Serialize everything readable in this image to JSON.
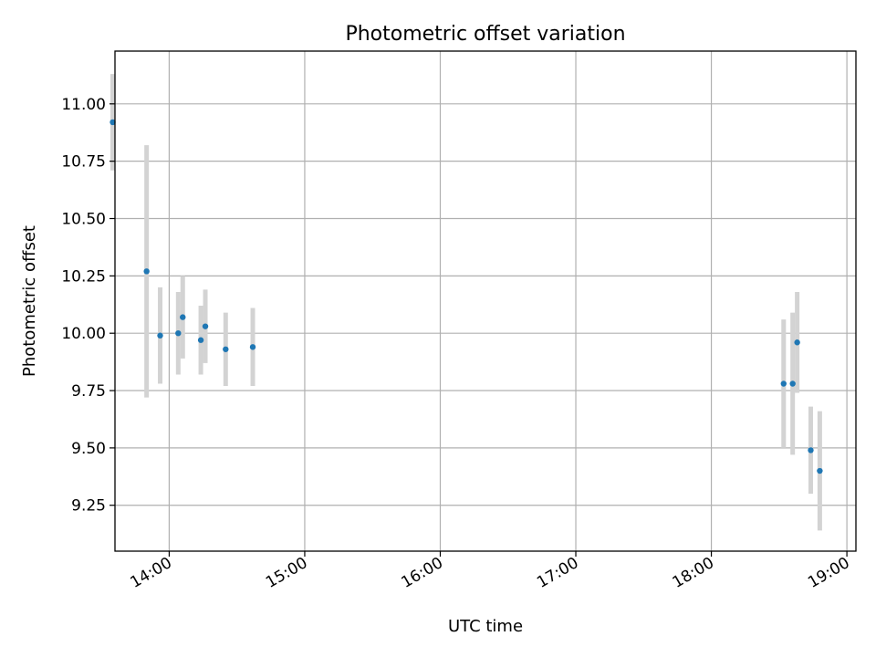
{
  "chart_data": {
    "type": "scatter",
    "title": "Photometric offset variation",
    "xlabel": "UTC time",
    "ylabel": "Photometric offset",
    "grid": true,
    "xlim": [
      "13:36",
      "19:04"
    ],
    "ylim": [
      9.05,
      11.23
    ],
    "x_ticks": [
      "14:00",
      "15:00",
      "16:00",
      "17:00",
      "18:00",
      "19:00"
    ],
    "y_ticks": [
      9.25,
      9.5,
      9.75,
      10.0,
      10.25,
      10.5,
      10.75,
      11.0
    ],
    "y_tick_labels": [
      "9.25",
      "9.50",
      "9.75",
      "10.00",
      "10.25",
      "10.50",
      "10.75",
      "11.00"
    ],
    "colors": {
      "points": "#1f77b4",
      "error_bars": "#d3d3d3",
      "grid": "#b0b0b0"
    },
    "points": [
      {
        "time": "13:35",
        "y": 10.92,
        "err": 0.21
      },
      {
        "time": "13:50",
        "y": 10.27,
        "err": 0.55
      },
      {
        "time": "13:56",
        "y": 9.99,
        "err": 0.21
      },
      {
        "time": "14:04",
        "y": 10.0,
        "err": 0.18
      },
      {
        "time": "14:06",
        "y": 10.07,
        "err": 0.18
      },
      {
        "time": "14:14",
        "y": 9.97,
        "err": 0.15
      },
      {
        "time": "14:16",
        "y": 10.03,
        "err": 0.16
      },
      {
        "time": "14:25",
        "y": 9.93,
        "err": 0.16
      },
      {
        "time": "14:37",
        "y": 9.94,
        "err": 0.17
      },
      {
        "time": "18:32",
        "y": 9.78,
        "err": 0.28
      },
      {
        "time": "18:36",
        "y": 9.78,
        "err": 0.31
      },
      {
        "time": "18:38",
        "y": 9.96,
        "err": 0.22
      },
      {
        "time": "18:44",
        "y": 9.49,
        "err": 0.19
      },
      {
        "time": "18:48",
        "y": 9.4,
        "err": 0.26
      }
    ]
  }
}
